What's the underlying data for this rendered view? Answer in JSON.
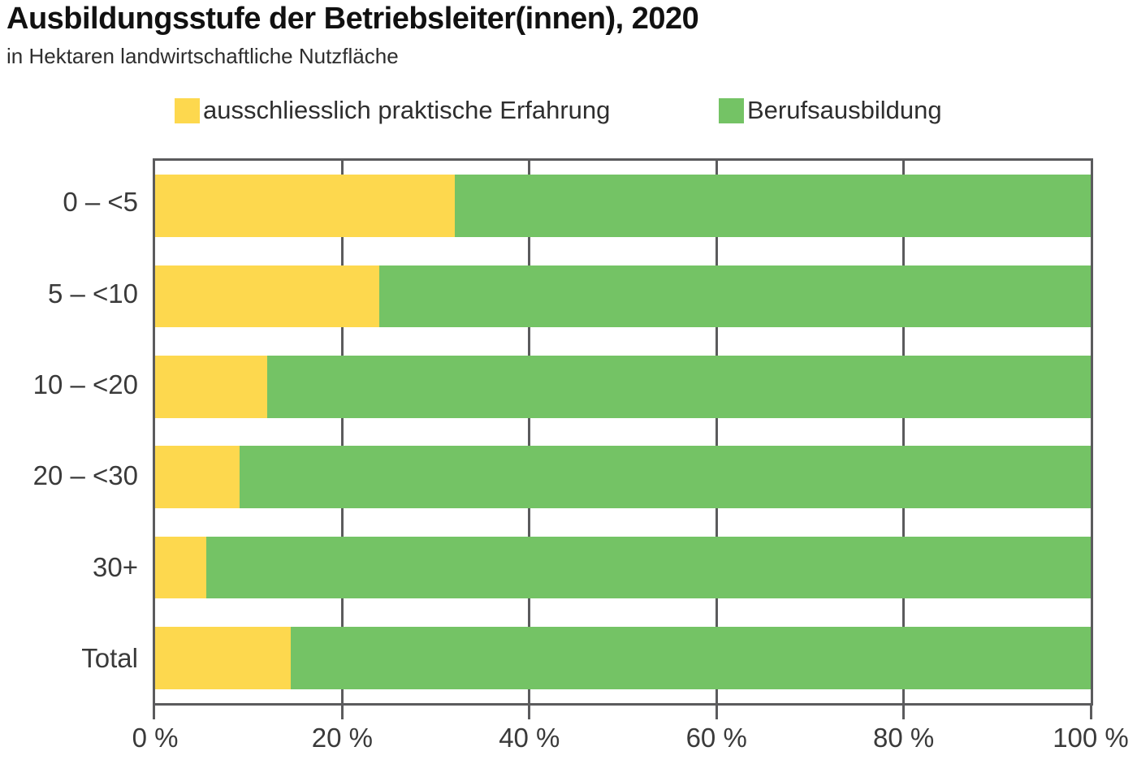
{
  "header": {
    "title": "Ausbildungsstufe der Betriebsleiter(innen), 2020",
    "subtitle": "in Hektaren landwirtschaftliche Nutzfläche"
  },
  "legend": [
    {
      "label": "ausschliesslich praktische Erfahrung",
      "color": "#FDD84E"
    },
    {
      "label": "Berufsausbildung",
      "color": "#74C365"
    }
  ],
  "chart_data": {
    "type": "bar",
    "orientation": "horizontal",
    "stacked": true,
    "title": "Ausbildungsstufe der Betriebsleiter(innen), 2020",
    "subtitle": "in Hektaren landwirtschaftliche Nutzfläche",
    "categories": [
      "0 – <5",
      "5 – <10",
      "10 – <20",
      "20 – <30",
      "30+",
      "Total"
    ],
    "series": [
      {
        "name": "ausschliesslich praktische Erfahrung",
        "color": "#FDD84E",
        "values": [
          32,
          24,
          12,
          9,
          5.5,
          14.5
        ]
      },
      {
        "name": "Berufsausbildung",
        "color": "#74C365",
        "values": [
          68,
          76,
          88,
          91,
          94.5,
          85.5
        ]
      }
    ],
    "xlim": [
      0,
      100
    ],
    "x_ticks": [
      0,
      20,
      40,
      60,
      80,
      100
    ],
    "x_tick_labels": [
      "0 %",
      "20 %",
      "40 %",
      "60 %",
      "80 %",
      "100 %"
    ],
    "grid": "vertical gridlines at 20/40/60/80, drawn behind bars",
    "legend_position": "top",
    "axis_color": "#5b5b5d"
  }
}
